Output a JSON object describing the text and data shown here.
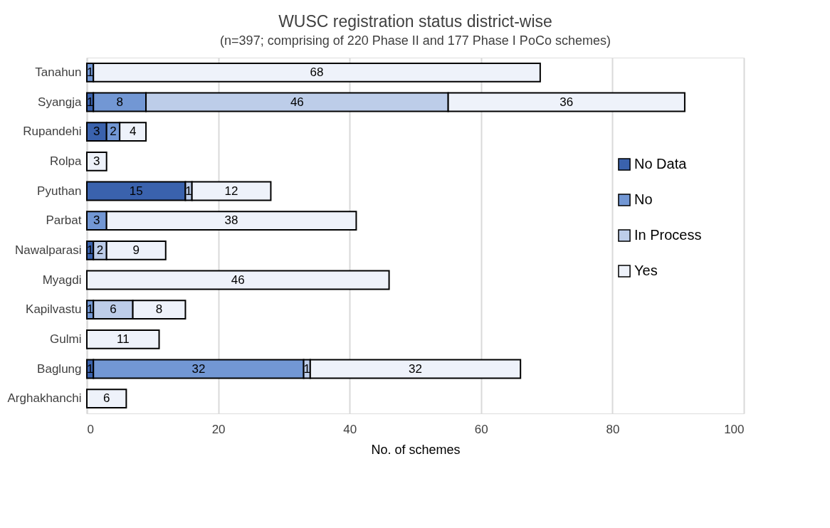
{
  "chart_data": {
    "type": "bar",
    "orientation": "horizontal",
    "stacked": true,
    "title": "WUSC registration status district-wise",
    "subtitle": "(n=397; comprising of 220 Phase II and 177 Phase I PoCo schemes)",
    "xlabel": "No. of schemes",
    "categories": [
      "Tanahun",
      "Syangja",
      "Rupandehi",
      "Rolpa",
      "Pyuthan",
      "Parbat",
      "Nawalparasi",
      "Myagdi",
      "Kapilvastu",
      "Gulmi",
      "Baglung",
      "Arghakhanchi"
    ],
    "series": [
      {
        "name": "No Data",
        "color": "#3a62ad",
        "values": [
          null,
          1,
          3,
          null,
          15,
          null,
          1,
          null,
          null,
          null,
          1,
          null
        ]
      },
      {
        "name": "No",
        "color": "#7297d4",
        "values": [
          1,
          8,
          2,
          null,
          null,
          3,
          null,
          null,
          1,
          null,
          32,
          null
        ]
      },
      {
        "name": "In Process",
        "color": "#bdcde9",
        "values": [
          null,
          46,
          null,
          null,
          1,
          null,
          2,
          null,
          6,
          null,
          1,
          null
        ]
      },
      {
        "name": "Yes",
        "color": "#eef2fa",
        "values": [
          68,
          36,
          4,
          3,
          12,
          38,
          9,
          46,
          8,
          11,
          32,
          6
        ]
      }
    ],
    "xlim": [
      0,
      100
    ],
    "xticks": [
      0,
      20,
      40,
      60,
      80,
      100
    ],
    "grid": "x",
    "legend": "right",
    "data_labels": true
  }
}
